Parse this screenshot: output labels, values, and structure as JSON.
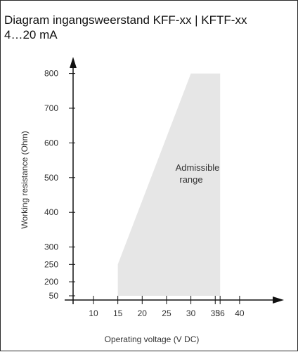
{
  "chart_data": {
    "type": "area",
    "title_line1": "Diagram ingangsweerstand KFF-xx | KFTF-xx",
    "title_line2": "4…20 mA",
    "xlabel": "Operating voltage  (V DC)",
    "ylabel": "Working resistance  (Ohm)",
    "x_ticks": [
      10,
      15,
      20,
      25,
      30,
      35,
      36,
      40
    ],
    "y_ticks": [
      50,
      200,
      250,
      300,
      400,
      500,
      600,
      700,
      800
    ],
    "region": {
      "label_line1": "Admissible",
      "label_line2": "range",
      "points": [
        {
          "x": 15,
          "y": 50
        },
        {
          "x": 15,
          "y": 250
        },
        {
          "x": 30,
          "y": 800
        },
        {
          "x": 36,
          "y": 800
        },
        {
          "x": 36,
          "y": 50
        }
      ]
    },
    "colors": {
      "region": "#e6e6e6",
      "axis": "#111111",
      "text": "#333333"
    }
  }
}
